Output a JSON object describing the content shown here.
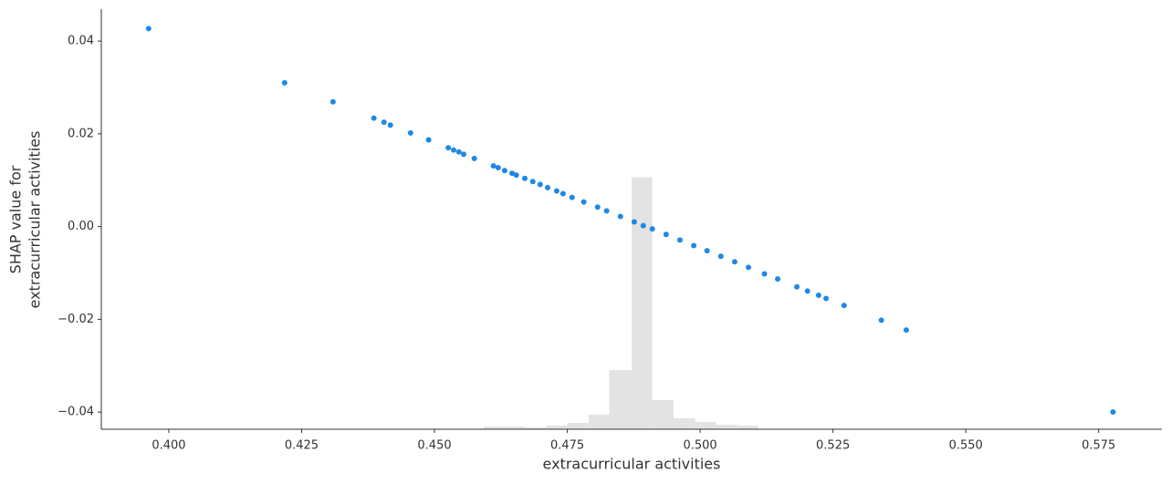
{
  "chart_data": {
    "type": "scatter",
    "xlabel": "extracurricular activities",
    "ylabel": [
      "SHAP value for",
      "extracurricular activities"
    ],
    "color": "#1e88e5",
    "x": [
      0.3962,
      0.4218,
      0.4309,
      0.4386,
      0.4405,
      0.4417,
      0.4455,
      0.4489,
      0.4526,
      0.4536,
      0.4546,
      0.4555,
      0.4575,
      0.4611,
      0.462,
      0.4632,
      0.4646,
      0.4654,
      0.467,
      0.4685,
      0.4699,
      0.4713,
      0.473,
      0.4742,
      0.4759,
      0.4781,
      0.4807,
      0.4824,
      0.485,
      0.4876,
      0.4893,
      0.491,
      0.4936,
      0.4962,
      0.4988,
      0.5013,
      0.5039,
      0.5065,
      0.5091,
      0.5121,
      0.5146,
      0.5182,
      0.5202,
      0.5223,
      0.5237,
      0.5271,
      0.5341,
      0.5388,
      0.5777
    ],
    "values": [
      0.0427,
      0.031,
      0.0269,
      0.0234,
      0.0225,
      0.0219,
      0.0202,
      0.0187,
      0.017,
      0.0165,
      0.0161,
      0.0156,
      0.0147,
      0.0131,
      0.0127,
      0.0121,
      0.0115,
      0.0111,
      0.0104,
      0.0097,
      0.0091,
      0.0084,
      0.0077,
      0.0071,
      0.0063,
      0.0053,
      0.0042,
      0.0034,
      0.0022,
      0.001,
      0.0002,
      -0.0005,
      -0.0017,
      -0.0029,
      -0.0041,
      -0.0052,
      -0.0064,
      -0.0076,
      -0.0088,
      -0.0102,
      -0.0113,
      -0.013,
      -0.0139,
      -0.0148,
      -0.0155,
      -0.017,
      -0.0202,
      -0.0223,
      -0.04
    ],
    "histogram": {
      "color": "#e3e3e3",
      "bins": [
        0.4593,
        0.4632,
        0.4671,
        0.4711,
        0.475,
        0.479,
        0.4829,
        0.4871,
        0.491,
        0.495,
        0.4991,
        0.503,
        0.507,
        0.5109
      ],
      "counts": [
        3,
        3,
        2,
        4,
        7,
        16,
        65,
        277,
        32,
        12,
        8,
        5,
        4
      ]
    },
    "xlim": [
      0.3873,
      0.5869
    ],
    "ylim": [
      -0.0437,
      0.0469
    ],
    "xticks": [
      {
        "value": 0.4,
        "label": "0.400"
      },
      {
        "value": 0.425,
        "label": "0.425"
      },
      {
        "value": 0.45,
        "label": "0.450"
      },
      {
        "value": 0.475,
        "label": "0.475"
      },
      {
        "value": 0.5,
        "label": "0.500"
      },
      {
        "value": 0.525,
        "label": "0.525"
      },
      {
        "value": 0.55,
        "label": "0.550"
      },
      {
        "value": 0.575,
        "label": "0.575"
      }
    ],
    "yticks": [
      {
        "value": -0.04,
        "label": "−0.04"
      },
      {
        "value": -0.02,
        "label": "−0.02"
      },
      {
        "value": 0,
        "label": "0.00"
      },
      {
        "value": 0.02,
        "label": "0.02"
      },
      {
        "value": 0.04,
        "label": "0.04"
      }
    ]
  }
}
